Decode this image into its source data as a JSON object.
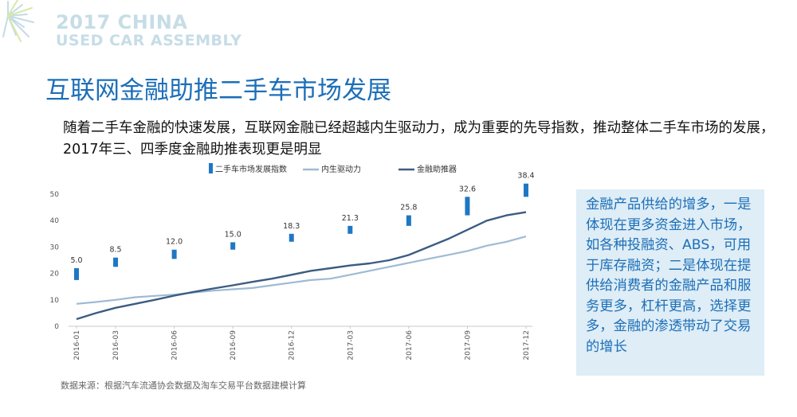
{
  "logo": {
    "line1": "2017 CHINA",
    "line2": "USED CAR ASSEMBLY"
  },
  "slide": {
    "title": "互联网金融助推二手车市场发展",
    "intro": "随着二手车金融的快速发展，互联网金融已经超越内生驱动力，成为重要的先导指数，推动整体二手车市场的发展，2017年三、四季度金融助推表现更是明显",
    "note": "金融产品供给的增多，一是体现在更多资金进入市场，如各种投融资、ABS，可用于库存融资；二是体现在提供给消费者的金融产品和服务更多，杠杆更高，选择更多，金融的渗透带动了交易的增长",
    "source": "数据来源：根据汽车流通协会数据及淘车交易平台数据建模计算"
  },
  "colors": {
    "title": "#1d6fb8",
    "bar": "#1f77c4",
    "inner": "#9fbad3",
    "finance": "#3c5c82",
    "note_bg": "#deedf6"
  },
  "chart_data": {
    "type": "line",
    "x": [
      "2016-01",
      "2016-02",
      "2016-03",
      "2016-04",
      "2016-05",
      "2016-06",
      "2016-07",
      "2016-08",
      "2016-09",
      "2016-10",
      "2016-11",
      "2016-12",
      "2017-01",
      "2017-02",
      "2017-03",
      "2017-04",
      "2017-05",
      "2017-06",
      "2017-07",
      "2017-08",
      "2017-09",
      "2017-10",
      "2017-11",
      "2017-12"
    ],
    "xticks": [
      "2016-01",
      "2016-03",
      "2016-06",
      "2016-09",
      "2016-12",
      "2017-03",
      "2017-06",
      "2017-09",
      "2017-12"
    ],
    "ylim": [
      0,
      50
    ],
    "yticks": [
      0,
      10,
      20,
      30,
      40,
      50
    ],
    "legend": [
      "二手车市场发展指数",
      "内生驱动力",
      "金融助推器"
    ],
    "legend_position": "top",
    "grid": false,
    "series": [
      {
        "name": "二手车市场发展指数",
        "kind": "bar",
        "points": [
          {
            "x": "2016-01",
            "low": 17.5,
            "high": 22.0,
            "label": "5.0"
          },
          {
            "x": "2016-03",
            "low": 22.5,
            "high": 26.0,
            "label": "8.5"
          },
          {
            "x": "2016-06",
            "low": 25.5,
            "high": 29.0,
            "label": "12.0"
          },
          {
            "x": "2016-09",
            "low": 29.0,
            "high": 31.8,
            "label": "15.0"
          },
          {
            "x": "2016-12",
            "low": 32.0,
            "high": 35.0,
            "label": "18.3"
          },
          {
            "x": "2017-03",
            "low": 35.0,
            "high": 38.0,
            "label": "21.3"
          },
          {
            "x": "2017-06",
            "low": 38.0,
            "high": 42.0,
            "label": "25.8"
          },
          {
            "x": "2017-09",
            "low": 42.0,
            "high": 49.0,
            "label": "32.6"
          },
          {
            "x": "2017-12",
            "low": 49.0,
            "high": 54.0,
            "label": "38.4"
          }
        ]
      },
      {
        "name": "内生驱动力",
        "kind": "line",
        "values": [
          8.5,
          9.2,
          10.0,
          11.0,
          11.5,
          12.0,
          12.8,
          13.5,
          14.0,
          14.5,
          15.5,
          16.5,
          17.5,
          18.0,
          19.5,
          21.0,
          22.5,
          24.0,
          25.5,
          27.0,
          28.5,
          30.5,
          32.0,
          34.0
        ]
      },
      {
        "name": "金融助推器",
        "kind": "line",
        "values": [
          2.7,
          5.0,
          7.0,
          8.5,
          10.0,
          11.6,
          13.0,
          14.3,
          15.5,
          16.8,
          18.0,
          19.5,
          21.0,
          22.0,
          23.0,
          23.8,
          25.0,
          27.0,
          30.0,
          33.0,
          36.5,
          40.0,
          42.0,
          43.2
        ]
      }
    ]
  }
}
